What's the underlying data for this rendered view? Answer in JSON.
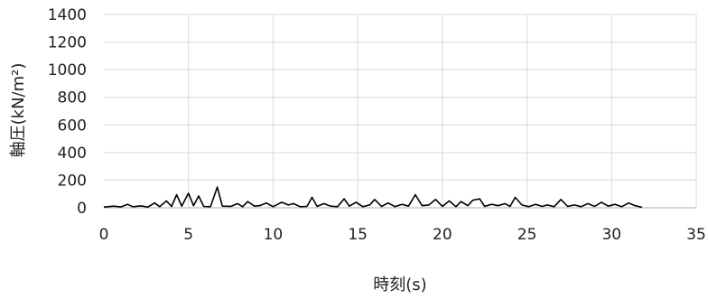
{
  "chart_data": {
    "type": "line",
    "title": "",
    "xlabel": "時刻(s)",
    "ylabel": "軸圧(kN/m²)",
    "xlim": [
      0,
      35
    ],
    "ylim": [
      0,
      1400
    ],
    "x_ticks": [
      0,
      5,
      10,
      15,
      20,
      25,
      30,
      35
    ],
    "y_ticks": [
      0,
      200,
      400,
      600,
      800,
      1000,
      1200,
      1400
    ],
    "grid": true,
    "legend": "none",
    "series": [
      {
        "color": "#000000",
        "points": [
          [
            0.0,
            5
          ],
          [
            0.6,
            12
          ],
          [
            1.0,
            6
          ],
          [
            1.4,
            25
          ],
          [
            1.7,
            8
          ],
          [
            2.2,
            14
          ],
          [
            2.6,
            5
          ],
          [
            3.0,
            35
          ],
          [
            3.3,
            8
          ],
          [
            3.7,
            50
          ],
          [
            4.0,
            10
          ],
          [
            4.3,
            95
          ],
          [
            4.6,
            12
          ],
          [
            5.0,
            105
          ],
          [
            5.3,
            15
          ],
          [
            5.6,
            85
          ],
          [
            5.9,
            10
          ],
          [
            6.3,
            8
          ],
          [
            6.7,
            150
          ],
          [
            7.0,
            12
          ],
          [
            7.5,
            10
          ],
          [
            7.9,
            30
          ],
          [
            8.2,
            8
          ],
          [
            8.5,
            45
          ],
          [
            8.9,
            12
          ],
          [
            9.2,
            15
          ],
          [
            9.6,
            35
          ],
          [
            10.0,
            8
          ],
          [
            10.5,
            40
          ],
          [
            10.9,
            20
          ],
          [
            11.2,
            30
          ],
          [
            11.6,
            8
          ],
          [
            12.0,
            10
          ],
          [
            12.3,
            75
          ],
          [
            12.6,
            10
          ],
          [
            13.0,
            30
          ],
          [
            13.4,
            12
          ],
          [
            13.8,
            8
          ],
          [
            14.2,
            65
          ],
          [
            14.5,
            12
          ],
          [
            14.9,
            40
          ],
          [
            15.3,
            8
          ],
          [
            15.7,
            20
          ],
          [
            16.0,
            60
          ],
          [
            16.4,
            10
          ],
          [
            16.8,
            35
          ],
          [
            17.2,
            8
          ],
          [
            17.6,
            25
          ],
          [
            18.0,
            12
          ],
          [
            18.4,
            95
          ],
          [
            18.8,
            15
          ],
          [
            19.2,
            20
          ],
          [
            19.6,
            60
          ],
          [
            20.0,
            10
          ],
          [
            20.4,
            50
          ],
          [
            20.8,
            8
          ],
          [
            21.1,
            45
          ],
          [
            21.5,
            15
          ],
          [
            21.8,
            55
          ],
          [
            22.2,
            65
          ],
          [
            22.5,
            10
          ],
          [
            22.9,
            25
          ],
          [
            23.3,
            15
          ],
          [
            23.7,
            30
          ],
          [
            24.0,
            10
          ],
          [
            24.3,
            75
          ],
          [
            24.7,
            20
          ],
          [
            25.1,
            8
          ],
          [
            25.5,
            25
          ],
          [
            25.9,
            10
          ],
          [
            26.2,
            20
          ],
          [
            26.6,
            8
          ],
          [
            27.0,
            60
          ],
          [
            27.4,
            10
          ],
          [
            27.8,
            20
          ],
          [
            28.2,
            8
          ],
          [
            28.6,
            30
          ],
          [
            29.0,
            10
          ],
          [
            29.4,
            40
          ],
          [
            29.8,
            12
          ],
          [
            30.2,
            25
          ],
          [
            30.6,
            8
          ],
          [
            31.0,
            35
          ],
          [
            31.4,
            15
          ],
          [
            31.8,
            3
          ]
        ]
      }
    ]
  }
}
